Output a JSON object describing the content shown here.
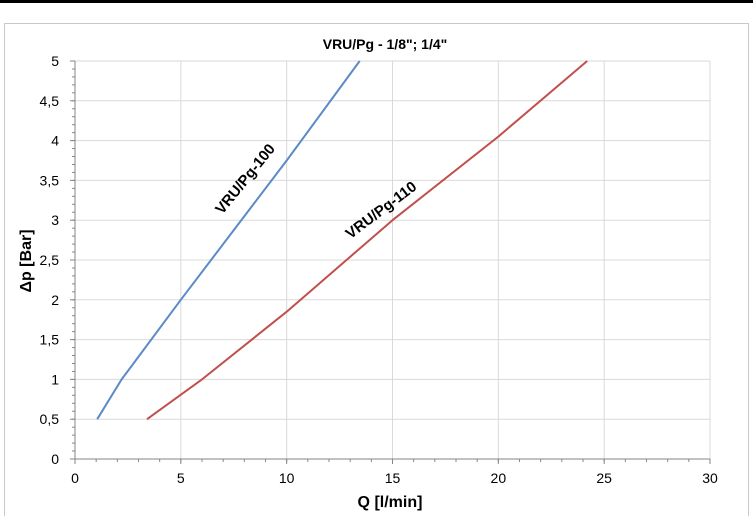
{
  "chart_data": {
    "type": "line",
    "title": "VRU/Pg - 1/8\"; 1/4\"",
    "xlabel": "Q [l/min]",
    "ylabel": "Δp [Bar]",
    "xlim": [
      0,
      30
    ],
    "ylim": [
      0,
      5
    ],
    "xticks": [
      "0",
      "5",
      "10",
      "15",
      "20",
      "25",
      "30"
    ],
    "yticks": [
      "0",
      "0,5",
      "1",
      "1,5",
      "2",
      "2,5",
      "3",
      "3,5",
      "4",
      "4,5",
      "5"
    ],
    "grid": true,
    "legend": "none",
    "series": [
      {
        "name": "VRU/Pg-100",
        "color": "#5b8ac6",
        "x": [
          1.05,
          2.2,
          5.0,
          10.0,
          13.45
        ],
        "y": [
          0.5,
          1.0,
          2.0,
          3.75,
          5.0
        ]
      },
      {
        "name": "VRU/Pg-110",
        "color": "#c0504d",
        "x": [
          3.4,
          6.0,
          10.0,
          15.0,
          20.0,
          24.2
        ],
        "y": [
          0.5,
          1.0,
          1.85,
          3.0,
          4.05,
          5.0
        ]
      }
    ]
  }
}
